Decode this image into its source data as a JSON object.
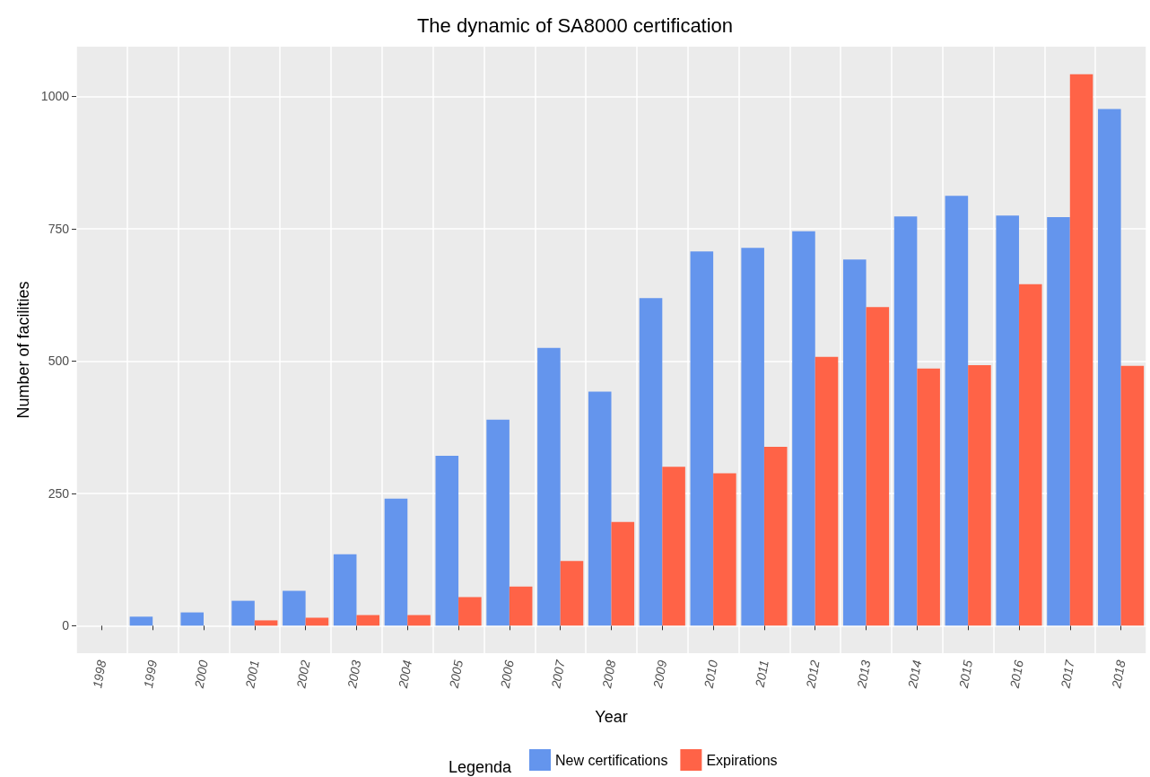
{
  "chart_data": {
    "type": "bar",
    "title": "The dynamic of SA8000 certification",
    "xlabel": "Year",
    "ylabel": "Number of facilities",
    "legend_title": "Legenda",
    "categories": [
      "1998",
      "1999",
      "2000",
      "2001",
      "2002",
      "2003",
      "2004",
      "2005",
      "2006",
      "2007",
      "2008",
      "2009",
      "2010",
      "2011",
      "2012",
      "2013",
      "2014",
      "2015",
      "2016",
      "2017",
      "2018"
    ],
    "series": [
      {
        "name": "New certifications",
        "color": "#6495ed",
        "values": [
          null,
          17,
          25,
          47,
          66,
          135,
          240,
          321,
          389,
          525,
          442,
          619,
          707,
          714,
          745,
          692,
          773,
          812,
          775,
          772,
          976
        ]
      },
      {
        "name": "Expirations",
        "color": "#ff6347",
        "values": [
          null,
          null,
          null,
          10,
          15,
          20,
          20,
          54,
          74,
          122,
          196,
          300,
          288,
          338,
          508,
          602,
          486,
          492,
          645,
          1042,
          491
        ]
      }
    ],
    "ylim": [
      -52,
      1094
    ],
    "yticks": [
      0,
      250,
      500,
      750,
      1000
    ],
    "grid": true,
    "legend": "bottom"
  }
}
